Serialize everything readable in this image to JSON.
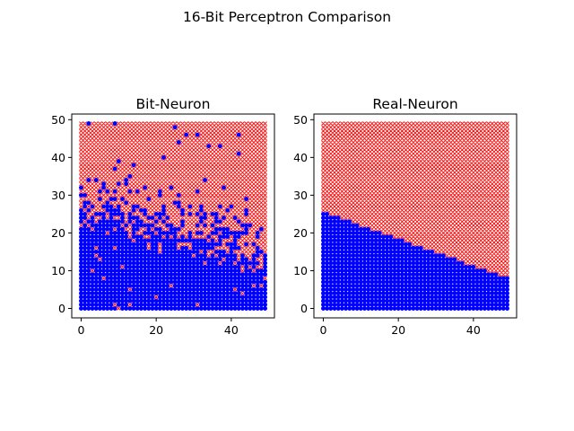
{
  "figure": {
    "title": "16-Bit Perceptron Comparison"
  },
  "colors": {
    "class_above": "#ff0000",
    "class_below": "#0000ff",
    "axis": "#000000",
    "background": "#ffffff"
  },
  "chart_data": [
    {
      "type": "scatter",
      "title": "Bit-Neuron",
      "xlabel": "",
      "ylabel": "",
      "xlim": [
        -2.5,
        51.5
      ],
      "ylim": [
        -2.5,
        51.5
      ],
      "xticks": [
        0,
        20,
        40
      ],
      "yticks": [
        0,
        10,
        20,
        30,
        40,
        50
      ],
      "grid": false,
      "grid_points": {
        "x_range": [
          0,
          49
        ],
        "y_range": [
          0,
          49
        ],
        "step": 1
      },
      "series": [
        {
          "marker": "x",
          "color": "#ff0000",
          "rule": "points above decision boundary"
        },
        {
          "marker": "o",
          "color": "#0000ff",
          "rule": "points on/below decision boundary"
        }
      ],
      "decision_boundary_approx": {
        "x": [
          0,
          10,
          20,
          30,
          40,
          49
        ],
        "y": [
          28,
          27,
          22,
          20,
          18,
          14
        ]
      },
      "noise": "high"
    },
    {
      "type": "scatter",
      "title": "Real-Neuron",
      "xlabel": "",
      "ylabel": "",
      "xlim": [
        -2.5,
        51.5
      ],
      "ylim": [
        -2.5,
        51.5
      ],
      "xticks": [
        0,
        20,
        40
      ],
      "yticks": [
        0,
        10,
        20,
        30,
        40,
        50
      ],
      "grid": false,
      "grid_points": {
        "x_range": [
          0,
          49
        ],
        "y_range": [
          0,
          49
        ],
        "step": 1
      },
      "series": [
        {
          "marker": "x",
          "color": "#ff0000",
          "rule": "points above decision boundary"
        },
        {
          "marker": "o",
          "color": "#0000ff",
          "rule": "points on/below decision boundary"
        }
      ],
      "decision_boundary_approx": {
        "x": [
          0,
          49
        ],
        "y": [
          25.5,
          8
        ]
      },
      "noise": "none"
    }
  ]
}
